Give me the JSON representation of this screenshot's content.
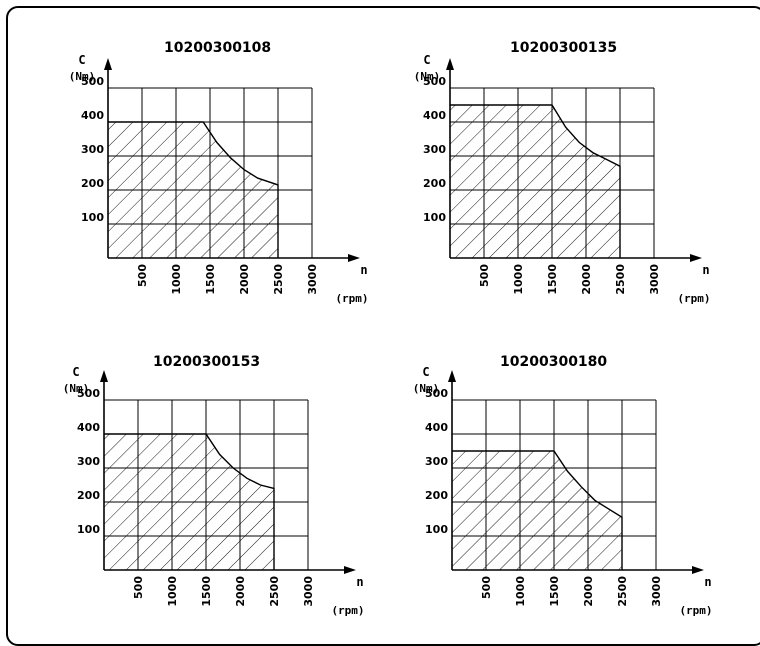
{
  "chart_data": [
    {
      "type": "area",
      "title": "10200300108",
      "ylabel": "C",
      "yunit": "(Nm)",
      "xlabel": "n",
      "xunit": "(rpm)",
      "xlim": [
        0,
        3500
      ],
      "ylim": [
        0,
        500
      ],
      "xticks": [
        500,
        1000,
        1500,
        2000,
        2500,
        3000
      ],
      "yticks": [
        100,
        200,
        300,
        400,
        500
      ],
      "grid": true,
      "fill": "hatched",
      "x": [
        0,
        1400,
        1600,
        1800,
        2000,
        2200,
        2500
      ],
      "y": [
        400,
        400,
        340,
        295,
        260,
        235,
        215
      ]
    },
    {
      "type": "area",
      "title": "10200300135",
      "ylabel": "C",
      "yunit": "(Nm)",
      "xlabel": "n",
      "xunit": "(rpm)",
      "xlim": [
        0,
        3500
      ],
      "ylim": [
        0,
        500
      ],
      "xticks": [
        500,
        1000,
        1500,
        2000,
        2500,
        3000
      ],
      "yticks": [
        100,
        200,
        300,
        400,
        500
      ],
      "grid": true,
      "fill": "hatched",
      "x": [
        0,
        1500,
        1700,
        1900,
        2100,
        2300,
        2500
      ],
      "y": [
        450,
        450,
        385,
        340,
        310,
        290,
        270
      ]
    },
    {
      "type": "area",
      "title": "10200300153",
      "ylabel": "C",
      "yunit": "(Nm)",
      "xlabel": "n",
      "xunit": "(rpm)",
      "xlim": [
        0,
        3500
      ],
      "ylim": [
        0,
        500
      ],
      "xticks": [
        500,
        1000,
        1500,
        2000,
        2500,
        3000
      ],
      "yticks": [
        100,
        200,
        300,
        400,
        500
      ],
      "grid": true,
      "fill": "hatched",
      "x": [
        0,
        1500,
        1700,
        1900,
        2100,
        2300,
        2500
      ],
      "y": [
        400,
        400,
        340,
        300,
        270,
        250,
        240
      ]
    },
    {
      "type": "area",
      "title": "10200300180",
      "ylabel": "C",
      "yunit": "(Nm)",
      "xlabel": "n",
      "xunit": "(rpm)",
      "xlim": [
        0,
        3500
      ],
      "ylim": [
        0,
        500
      ],
      "xticks": [
        500,
        1000,
        1500,
        2000,
        2500,
        3000
      ],
      "yticks": [
        100,
        200,
        300,
        400,
        500
      ],
      "grid": true,
      "fill": "hatched",
      "x": [
        0,
        1500,
        1700,
        1900,
        2100,
        2300,
        2500
      ],
      "y": [
        350,
        350,
        290,
        245,
        205,
        180,
        155
      ]
    }
  ]
}
